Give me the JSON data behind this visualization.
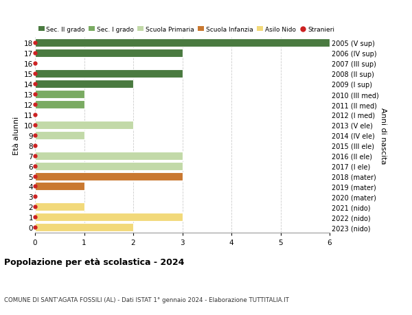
{
  "ages": [
    18,
    17,
    16,
    15,
    14,
    13,
    12,
    11,
    10,
    9,
    8,
    7,
    6,
    5,
    4,
    3,
    2,
    1,
    0
  ],
  "right_labels": [
    "2005 (V sup)",
    "2006 (IV sup)",
    "2007 (III sup)",
    "2008 (II sup)",
    "2009 (I sup)",
    "2010 (III med)",
    "2011 (II med)",
    "2012 (I med)",
    "2013 (V ele)",
    "2014 (IV ele)",
    "2015 (III ele)",
    "2016 (II ele)",
    "2017 (I ele)",
    "2018 (mater)",
    "2019 (mater)",
    "2020 (mater)",
    "2021 (nido)",
    "2022 (nido)",
    "2023 (nido)"
  ],
  "bar_values": [
    6,
    3,
    0,
    3,
    2,
    1,
    1,
    0,
    2,
    1,
    0,
    3,
    3,
    3,
    1,
    0,
    1,
    3,
    2
  ],
  "bar_colors": [
    "#4a7a40",
    "#4a7a40",
    "#4a7a40",
    "#4a7a40",
    "#4a7a40",
    "#7aab62",
    "#7aab62",
    "#7aab62",
    "#c2d9a8",
    "#c2d9a8",
    "#c2d9a8",
    "#c2d9a8",
    "#c2d9a8",
    "#c97830",
    "#c97830",
    "#c97830",
    "#f2d97a",
    "#f2d97a",
    "#f2d97a"
  ],
  "dot_color": "#cc2222",
  "legend_labels": [
    "Sec. II grado",
    "Sec. I grado",
    "Scuola Primaria",
    "Scuola Infanzia",
    "Asilo Nido",
    "Stranieri"
  ],
  "legend_colors": [
    "#4a7a40",
    "#7aab62",
    "#c2d9a8",
    "#c97830",
    "#f2d97a",
    "#cc2222"
  ],
  "legend_marker_types": [
    "rect",
    "rect",
    "rect",
    "rect",
    "rect",
    "circle"
  ],
  "title": "Popolazione per età scolastica - 2024",
  "subtitle": "COMUNE DI SANT'AGATA FOSSILI (AL) - Dati ISTAT 1° gennaio 2024 - Elaborazione TUTTITALIA.IT",
  "ylabel": "Età alunni",
  "right_ylabel": "Anni di nascita",
  "xlim": [
    0,
    6
  ],
  "xticks": [
    0,
    1,
    2,
    3,
    4,
    5,
    6
  ],
  "ylim_min": -0.55,
  "ylim_max": 18.55,
  "bg_color": "#ffffff",
  "grid_color": "#cccccc",
  "bar_height": 0.8
}
